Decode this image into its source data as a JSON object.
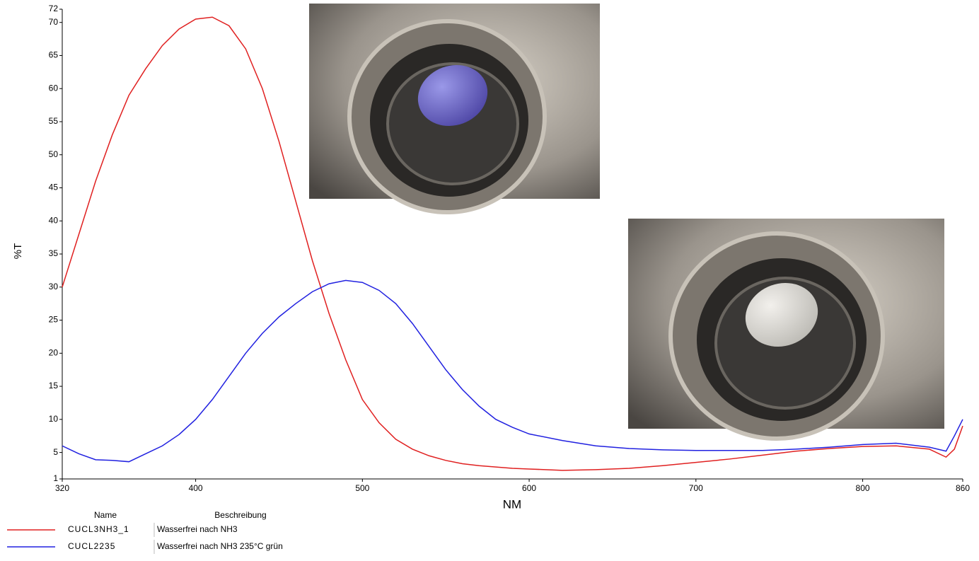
{
  "chart_data": {
    "type": "line",
    "xlabel": "NM",
    "ylabel": "%T",
    "x": [
      320,
      330,
      340,
      350,
      360,
      370,
      380,
      390,
      400,
      410,
      420,
      430,
      440,
      450,
      460,
      470,
      480,
      490,
      500,
      510,
      520,
      530,
      540,
      550,
      560,
      570,
      580,
      590,
      600,
      620,
      640,
      660,
      680,
      700,
      720,
      740,
      760,
      780,
      800,
      820,
      840,
      850,
      855,
      860
    ],
    "series": [
      {
        "name": "CUCL3NH3_1",
        "description": "Wasserfrei nach NH3",
        "color": "#e02020",
        "values": [
          30,
          38,
          46,
          53,
          59,
          63,
          66.5,
          69,
          70.5,
          70.8,
          69.5,
          66,
          60,
          52,
          43,
          34,
          26,
          19,
          13,
          9.5,
          7,
          5.5,
          4.5,
          3.8,
          3.3,
          3,
          2.8,
          2.6,
          2.5,
          2.3,
          2.4,
          2.6,
          3,
          3.5,
          4,
          4.6,
          5.2,
          5.6,
          5.9,
          6,
          5.5,
          4.3,
          5.5,
          9
        ]
      },
      {
        "name": "CUCL2235",
        "description": "Wasserfrei nach NH3 235°C grün",
        "color": "#2020e0",
        "values": [
          6,
          4.8,
          3.9,
          3.8,
          3.6,
          4.8,
          6,
          7.7,
          10,
          13,
          16.5,
          20,
          23,
          25.5,
          27.5,
          29.3,
          30.5,
          31,
          30.7,
          29.5,
          27.5,
          24.5,
          21,
          17.5,
          14.5,
          12,
          10,
          8.8,
          7.8,
          6.8,
          6,
          5.6,
          5.4,
          5.3,
          5.3,
          5.3,
          5.5,
          5.8,
          6.2,
          6.4,
          5.8,
          5.2,
          7.5,
          10
        ]
      }
    ],
    "legend_headers": [
      "Name",
      "Beschreibung"
    ],
    "xlim": [
      320,
      860
    ],
    "xticks": [
      320,
      400,
      500,
      600,
      700,
      800,
      860
    ],
    "ylim": [
      1,
      72
    ],
    "yticks": [
      1,
      5,
      10,
      15,
      20,
      25,
      30,
      35,
      40,
      45,
      50,
      55,
      60,
      65,
      70,
      72
    ],
    "grid": false
  }
}
